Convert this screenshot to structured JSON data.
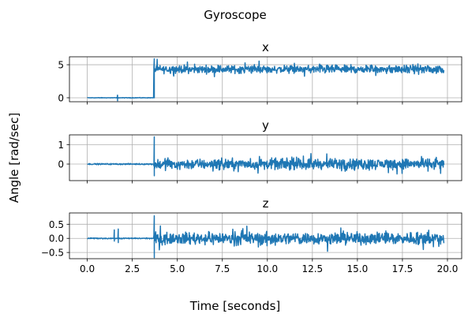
{
  "figure": {
    "title": "Gyroscope",
    "ylabel": "Angle [rad/sec]",
    "xlabel": "Time [seconds]"
  },
  "chart_data": [
    {
      "type": "line",
      "title": "x",
      "xlim": [
        -0.99,
        20.79
      ],
      "ylim": [
        -0.6,
        6.2
      ],
      "yticks": [
        0,
        5
      ],
      "xticks": [
        0.0,
        2.5,
        5.0,
        7.5,
        10.0,
        12.5,
        15.0,
        17.5,
        20.0
      ],
      "grid": true,
      "color": "#1f77b4",
      "series": [
        {
          "segments": [
            {
              "x": [
                0.0,
                3.7
              ],
              "baseline": 0.0,
              "noise": 0.06
            },
            {
              "x": [
                3.7,
                19.8
              ],
              "baseline": 4.3,
              "noise": 0.9
            }
          ],
          "spikes": [
            {
              "x": 1.68,
              "values": [
                0.4,
                -0.45
              ]
            },
            {
              "x": 3.72,
              "values": [
                5.9,
                0.0
              ]
            }
          ]
        }
      ]
    },
    {
      "type": "line",
      "title": "y",
      "xlim": [
        -0.99,
        20.79
      ],
      "ylim": [
        -0.85,
        1.5
      ],
      "yticks": [
        0,
        1
      ],
      "xticks": [
        0.0,
        2.5,
        5.0,
        7.5,
        10.0,
        12.5,
        15.0,
        17.5,
        20.0
      ],
      "grid": true,
      "color": "#1f77b4",
      "series": [
        {
          "segments": [
            {
              "x": [
                0.0,
                3.7
              ],
              "baseline": 0.0,
              "noise": 0.05
            },
            {
              "x": [
                3.7,
                19.8
              ],
              "baseline": 0.0,
              "noise": 0.42
            }
          ],
          "spikes": [
            {
              "x": 3.72,
              "values": [
                1.4,
                -0.6
              ]
            }
          ]
        }
      ]
    },
    {
      "type": "line",
      "title": "z",
      "xlim": [
        -0.99,
        20.79
      ],
      "ylim": [
        -0.72,
        0.9
      ],
      "yticks": [
        -0.5,
        0.0,
        0.5
      ],
      "ytick_labels": [
        "−0.5",
        "0.0",
        "0.5"
      ],
      "xticks": [
        0.0,
        2.5,
        5.0,
        7.5,
        10.0,
        12.5,
        15.0,
        17.5,
        20.0
      ],
      "xtick_labels": [
        "0.0",
        "2.5",
        "5.0",
        "7.5",
        "10.0",
        "12.5",
        "15.0",
        "17.5",
        "20.0"
      ],
      "grid": true,
      "color": "#1f77b4",
      "series": [
        {
          "segments": [
            {
              "x": [
                0.0,
                3.7
              ],
              "baseline": 0.0,
              "noise": 0.03
            },
            {
              "x": [
                3.7,
                19.8
              ],
              "baseline": 0.0,
              "noise": 0.33
            }
          ],
          "spikes": [
            {
              "x": 1.5,
              "values": [
                0.3,
                -0.1
              ]
            },
            {
              "x": 1.72,
              "values": [
                0.33,
                -0.15
              ]
            },
            {
              "x": 3.72,
              "values": [
                0.8,
                -0.68
              ]
            }
          ]
        }
      ]
    }
  ]
}
